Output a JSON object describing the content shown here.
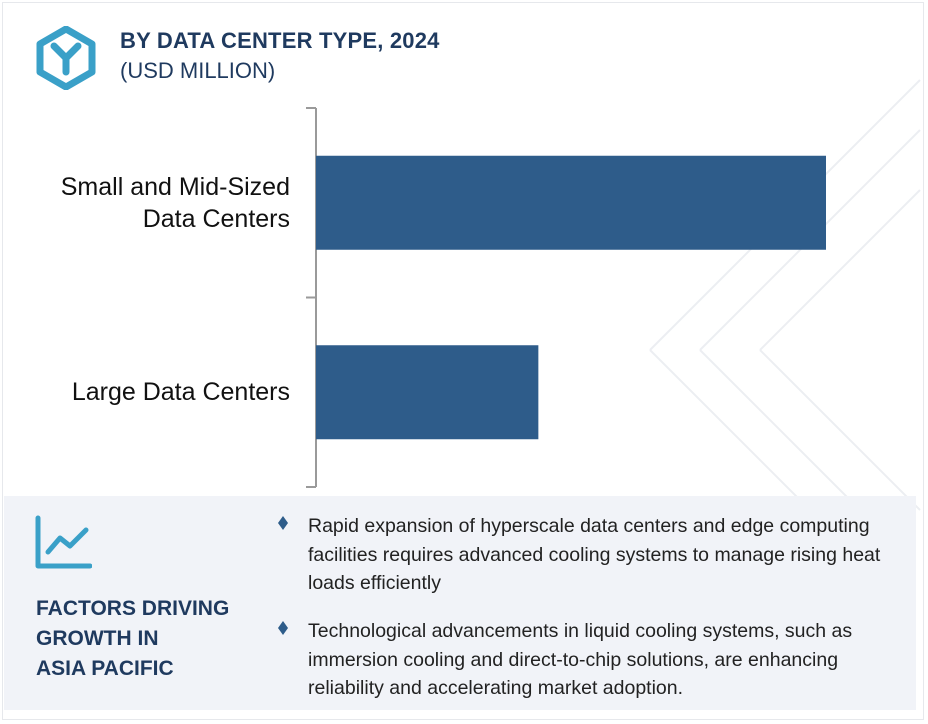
{
  "header": {
    "title": "BY DATA CENTER TYPE, 2024",
    "subtitle": "(USD MILLION)",
    "logo_icon": "y-hexagon-logo-icon"
  },
  "chart_data": {
    "type": "bar",
    "orientation": "horizontal",
    "title": "BY DATA CENTER TYPE, 2024",
    "subtitle": "(USD MILLION)",
    "categories": [
      "Small and Mid-Sized Data Centers",
      "Large Data Centers"
    ],
    "category_lines": [
      [
        "Small and Mid-Sized",
        "Data Centers"
      ],
      [
        "Large Data Centers"
      ]
    ],
    "values": [
      100,
      43.6
    ],
    "value_scale": "relative (no axis ticks shown)",
    "xlim": [
      0,
      100
    ],
    "grid": false,
    "legend": "none",
    "bar_color": "#2e5c8a"
  },
  "factors": {
    "icon": "trend-line-icon",
    "title_lines": [
      "FACTORS DRIVING",
      "GROWTH IN",
      "ASIA PACIFIC"
    ],
    "bullets": [
      "Rapid expansion of hyperscale data centers and edge computing facilities requires advanced cooling systems to manage rising heat loads efficiently",
      "Technological advancements in liquid cooling systems, such as immersion cooling and direct-to-chip solutions, are enhancing reliability and accelerating market adoption."
    ]
  },
  "colors": {
    "accent": "#3aa0c8",
    "title": "#1f3a5f",
    "bar": "#2e5c8a",
    "panel": "#f1f3f8"
  }
}
